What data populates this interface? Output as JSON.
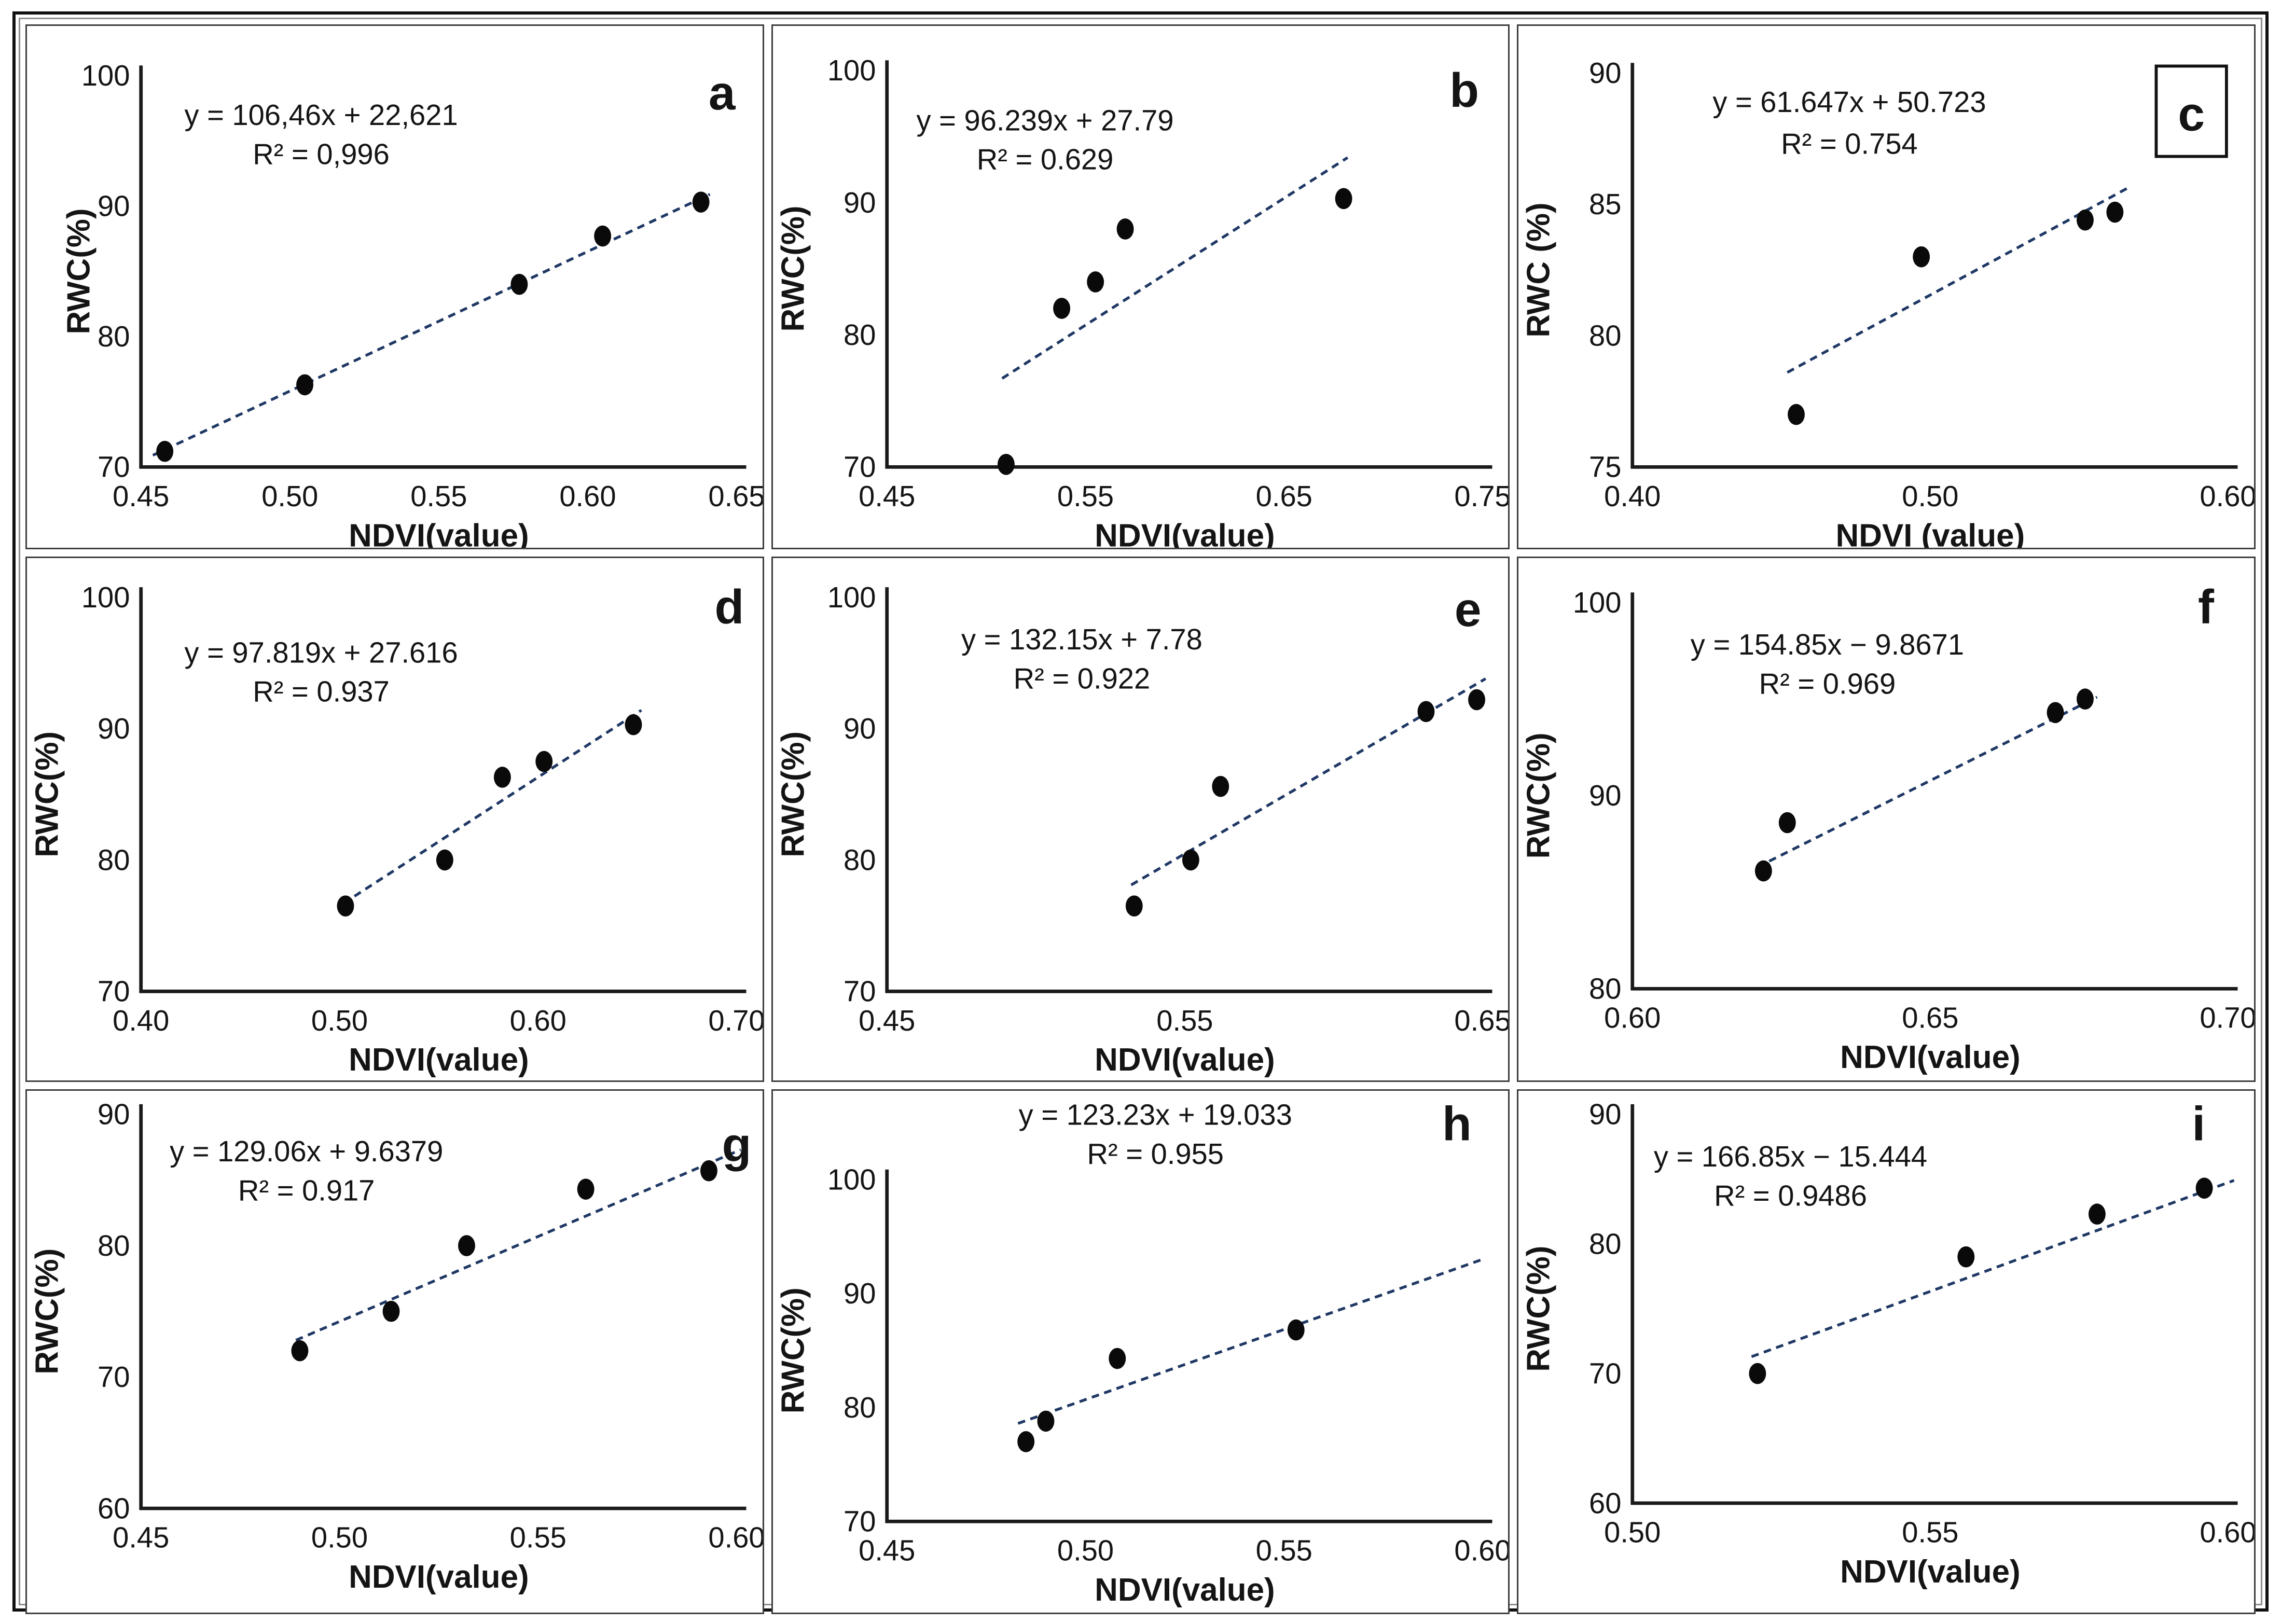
{
  "figure": {
    "description_visible_text_only": "",
    "colors": {
      "point": "#0a0a0a",
      "trend_line": "#1f3864",
      "axis": "#1a1a1a",
      "text": "#141414",
      "panel_letter": "#10131f",
      "panel_border": "#3d3d3d",
      "outer_border": "#111111"
    }
  },
  "chart_data": [
    {
      "type": "scatter",
      "panel_letter": "a",
      "letter_boxed": false,
      "equation": "y = 106,46x + 22,621",
      "r2": "R² = 0,996",
      "xlabel": "NDVI(value)",
      "ylabel": "RWC(%)",
      "xlim": [
        0.45,
        0.65
      ],
      "ylim": [
        70,
        100
      ],
      "xticks": [
        0.45,
        0.5,
        0.55,
        0.6,
        0.65
      ],
      "xtick_labels": [
        "0.45",
        "0.50",
        "0.55",
        "0.60",
        "0.65"
      ],
      "yticks": [
        70,
        80,
        90,
        100
      ],
      "ytick_labels": [
        "70",
        "80",
        "90",
        "100"
      ],
      "points": [
        [
          0.458,
          71.2
        ],
        [
          0.505,
          76.3
        ],
        [
          0.577,
          84.0
        ],
        [
          0.605,
          87.7
        ],
        [
          0.638,
          90.3
        ]
      ],
      "trend": [
        0.454,
        70.9,
        0.641,
        90.9
      ],
      "grid": false,
      "layout": {
        "top": 0.095,
        "bottom": 0.845,
        "eq_x": 0.4,
        "eq_y1": 0.19,
        "eq_y2": 0.265,
        "letter_x": 0.945,
        "letter_y": 0.16,
        "ylabel_x": 0.085
      }
    },
    {
      "type": "scatter",
      "panel_letter": "b",
      "letter_boxed": false,
      "equation": "y = 96.239x + 27.79",
      "r2": "R² = 0.629",
      "xlabel": "NDVI(value)",
      "ylabel": "RWC(%)",
      "xlim": [
        0.45,
        0.75
      ],
      "ylim": [
        70,
        100
      ],
      "xticks": [
        0.45,
        0.55,
        0.65,
        0.75
      ],
      "xtick_labels": [
        "0.45",
        "0.55",
        "0.65",
        "0.75"
      ],
      "yticks": [
        70,
        80,
        90,
        100
      ],
      "ytick_labels": [
        "70",
        "80",
        "90",
        "100"
      ],
      "points": [
        [
          0.51,
          70.2
        ],
        [
          0.538,
          82.0
        ],
        [
          0.555,
          84.0
        ],
        [
          0.57,
          88.0
        ],
        [
          0.68,
          90.3
        ]
      ],
      "trend": [
        0.508,
        76.7,
        0.682,
        93.4
      ],
      "grid": false,
      "layout": {
        "top": 0.085,
        "bottom": 0.845,
        "eq_x": 0.37,
        "eq_y1": 0.2,
        "eq_y2": 0.275,
        "letter_x": 0.94,
        "letter_y": 0.155,
        "ylabel_x": 0.042
      }
    },
    {
      "type": "scatter",
      "panel_letter": "c",
      "letter_boxed": true,
      "equation": "y = 61.647x + 50.723",
      "r2": "R² = 0.754",
      "xlabel": "NDVI (value)",
      "ylabel": "RWC (%)",
      "xlim": [
        0.4,
        0.6
      ],
      "ylim": [
        75,
        90
      ],
      "xticks": [
        0.4,
        0.5,
        0.6
      ],
      "xtick_labels": [
        "0.40",
        "0.50",
        "0.60"
      ],
      "yticks": [
        75,
        80,
        85,
        90
      ],
      "ytick_labels": [
        "75",
        "80",
        "85",
        "90"
      ],
      "points": [
        [
          0.455,
          77.0
        ],
        [
          0.497,
          83.0
        ],
        [
          0.552,
          84.4
        ],
        [
          0.562,
          84.7
        ]
      ],
      "trend": [
        0.452,
        78.6,
        0.566,
        85.6
      ],
      "grid": false,
      "layout": {
        "top": 0.09,
        "bottom": 0.845,
        "eq_x": 0.45,
        "eq_y1": 0.165,
        "eq_y2": 0.245,
        "letter_x": 0.915,
        "letter_y": 0.2,
        "ylabel_x": 0.042
      }
    },
    {
      "type": "scatter",
      "panel_letter": "d",
      "letter_boxed": false,
      "equation": "y = 97.819x + 27.616",
      "r2": "R² = 0.937",
      "xlabel": "NDVI(value)",
      "ylabel": "RWC(%)",
      "xlim": [
        0.4,
        0.7
      ],
      "ylim": [
        70,
        100
      ],
      "xticks": [
        0.4,
        0.5,
        0.6,
        0.7
      ],
      "xtick_labels": [
        "0.40",
        "0.50",
        "0.60",
        "0.70"
      ],
      "yticks": [
        70,
        80,
        90,
        100
      ],
      "ytick_labels": [
        "70",
        "80",
        "90",
        "100"
      ],
      "points": [
        [
          0.503,
          76.5
        ],
        [
          0.553,
          80.0
        ],
        [
          0.582,
          86.3
        ],
        [
          0.603,
          87.5
        ],
        [
          0.648,
          90.3
        ]
      ],
      "trend": [
        0.502,
        76.7,
        0.652,
        91.4
      ],
      "grid": false,
      "layout": {
        "top": 0.075,
        "bottom": 0.83,
        "eq_x": 0.4,
        "eq_y1": 0.2,
        "eq_y2": 0.275,
        "letter_x": 0.955,
        "letter_y": 0.125,
        "ylabel_x": 0.042
      }
    },
    {
      "type": "scatter",
      "panel_letter": "e",
      "letter_boxed": false,
      "equation": "y = 132.15x + 7.78",
      "r2": "R² = 0.922",
      "xlabel": "NDVI(value)",
      "ylabel": "RWC(%)",
      "xlim": [
        0.45,
        0.65
      ],
      "ylim": [
        70,
        100
      ],
      "xticks": [
        0.45,
        0.55,
        0.65
      ],
      "xtick_labels": [
        "0.45",
        "0.55",
        "0.65"
      ],
      "yticks": [
        70,
        80,
        90,
        100
      ],
      "ytick_labels": [
        "70",
        "80",
        "90",
        "100"
      ],
      "points": [
        [
          0.533,
          76.5
        ],
        [
          0.552,
          80.0
        ],
        [
          0.562,
          85.6
        ],
        [
          0.631,
          91.3
        ],
        [
          0.648,
          92.2
        ]
      ],
      "trend": [
        0.532,
        78.1,
        0.651,
        93.8
      ],
      "grid": false,
      "layout": {
        "top": 0.075,
        "bottom": 0.83,
        "eq_x": 0.42,
        "eq_y1": 0.175,
        "eq_y2": 0.25,
        "letter_x": 0.945,
        "letter_y": 0.13,
        "ylabel_x": 0.042
      }
    },
    {
      "type": "scatter",
      "panel_letter": "f",
      "letter_boxed": false,
      "equation": "y = 154.85x − 9.8671",
      "r2": "R² = 0.969",
      "xlabel": "NDVI(value)",
      "ylabel": "RWC(%)",
      "xlim": [
        0.6,
        0.7
      ],
      "ylim": [
        80,
        100
      ],
      "xticks": [
        0.6,
        0.65,
        0.7
      ],
      "xtick_labels": [
        "0.60",
        "0.65",
        "0.70"
      ],
      "yticks": [
        80,
        90,
        100
      ],
      "ytick_labels": [
        "80",
        "90",
        "100"
      ],
      "points": [
        [
          0.622,
          86.1
        ],
        [
          0.626,
          88.6
        ],
        [
          0.671,
          94.3
        ],
        [
          0.676,
          95.0
        ]
      ],
      "trend": [
        0.621,
        86.3,
        0.678,
        95.1
      ],
      "grid": false,
      "layout": {
        "top": 0.085,
        "bottom": 0.825,
        "eq_x": 0.42,
        "eq_y1": 0.185,
        "eq_y2": 0.26,
        "letter_x": 0.935,
        "letter_y": 0.125,
        "ylabel_x": 0.042
      }
    },
    {
      "type": "scatter",
      "panel_letter": "g",
      "letter_boxed": false,
      "equation": "y = 129.06x + 9.6379",
      "r2": "R² = 0.917",
      "xlabel": "NDVI(value)",
      "ylabel": "RWC(%)",
      "xlim": [
        0.45,
        0.6
      ],
      "ylim": [
        60,
        90
      ],
      "xticks": [
        0.45,
        0.5,
        0.55,
        0.6
      ],
      "xtick_labels": [
        "0.45",
        "0.50",
        "0.55",
        "0.60"
      ],
      "yticks": [
        60,
        70,
        80,
        90
      ],
      "ytick_labels": [
        "60",
        "70",
        "80",
        "90"
      ],
      "points": [
        [
          0.49,
          72.0
        ],
        [
          0.513,
          75.0
        ],
        [
          0.532,
          80.0
        ],
        [
          0.562,
          84.3
        ],
        [
          0.593,
          85.7
        ]
      ],
      "trend": [
        0.489,
        72.8,
        0.601,
        87.3
      ],
      "grid": false,
      "layout": {
        "top": 0.045,
        "bottom": 0.8,
        "eq_x": 0.38,
        "eq_y1": 0.135,
        "eq_y2": 0.21,
        "letter_x": 0.965,
        "letter_y": 0.135,
        "ylabel_x": 0.042
      }
    },
    {
      "type": "scatter",
      "panel_letter": "h",
      "letter_boxed": false,
      "equation": "y = 123.23x + 19.033",
      "r2": "R² = 0.955",
      "xlabel": "NDVI(value)",
      "ylabel": "RWC(%)",
      "xlim": [
        0.45,
        0.6
      ],
      "ylim": [
        70,
        100
      ],
      "xticks": [
        0.45,
        0.5,
        0.55,
        0.6
      ],
      "xtick_labels": [
        "0.45",
        "0.50",
        "0.55",
        "0.60"
      ],
      "yticks": [
        70,
        80,
        90,
        100
      ],
      "ytick_labels": [
        "70",
        "80",
        "90",
        "100"
      ],
      "points": [
        [
          0.485,
          77.0
        ],
        [
          0.49,
          78.8
        ],
        [
          0.508,
          84.3
        ],
        [
          0.553,
          86.8
        ]
      ],
      "trend": [
        0.483,
        78.6,
        0.6,
        93.0
      ],
      "grid": false,
      "layout": {
        "top": 0.17,
        "bottom": 0.825,
        "eq_x": 0.52,
        "eq_y1": 0.065,
        "eq_y2": 0.14,
        "letter_x": 0.93,
        "letter_y": 0.095,
        "ylabel_x": 0.042
      }
    },
    {
      "type": "scatter",
      "panel_letter": "i",
      "letter_boxed": false,
      "equation": "y = 166.85x − 15.444",
      "r2": "R² = 0.9486",
      "xlabel": "NDVI(value)",
      "ylabel": "RWC(%)",
      "xlim": [
        0.5,
        0.6
      ],
      "ylim": [
        60,
        90
      ],
      "xticks": [
        0.5,
        0.55,
        0.6
      ],
      "xtick_labels": [
        "0.50",
        "0.55",
        "0.60"
      ],
      "yticks": [
        60,
        70,
        80,
        90
      ],
      "ytick_labels": [
        "60",
        "70",
        "80",
        "90"
      ],
      "points": [
        [
          0.521,
          70.0
        ],
        [
          0.556,
          79.0
        ],
        [
          0.578,
          82.3
        ],
        [
          0.596,
          84.3
        ]
      ],
      "trend": [
        0.52,
        71.3,
        0.601,
        84.9
      ],
      "grid": false,
      "layout": {
        "top": 0.045,
        "bottom": 0.79,
        "eq_x": 0.37,
        "eq_y1": 0.145,
        "eq_y2": 0.22,
        "letter_x": 0.925,
        "letter_y": 0.095,
        "ylabel_x": 0.042
      }
    }
  ]
}
